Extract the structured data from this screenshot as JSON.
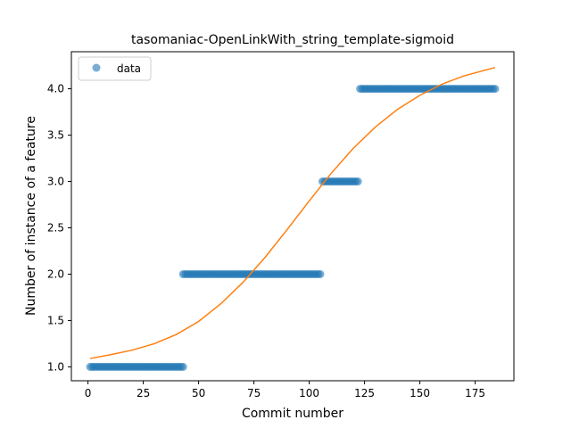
{
  "chart_data": {
    "type": "scatter",
    "title": "tasomaniac-OpenLinkWith_string_template-sigmoid",
    "xlabel": "Commit number",
    "ylabel": "Number of instance of a feature",
    "xlim": [
      -7.5,
      192.5
    ],
    "ylim": [
      0.85,
      4.4
    ],
    "xticks": [
      0,
      25,
      50,
      75,
      100,
      125,
      150,
      175
    ],
    "yticks": [
      1.0,
      1.5,
      2.0,
      2.5,
      3.0,
      3.5,
      4.0
    ],
    "xtick_labels": [
      "0",
      "25",
      "50",
      "75",
      "100",
      "125",
      "150",
      "175"
    ],
    "ytick_labels": [
      "1.0",
      "1.5",
      "2.0",
      "2.5",
      "3.0",
      "3.5",
      "4.0"
    ],
    "grid": false,
    "legend": {
      "position": "top-left",
      "entries": [
        "data"
      ]
    },
    "colors": {
      "data": "#1f77b4",
      "fit": "#ff7f0e"
    },
    "series": [
      {
        "name": "data",
        "kind": "scatter",
        "segments": [
          {
            "x_start": 1,
            "x_end": 43,
            "y": 1.0
          },
          {
            "x_start": 43,
            "x_end": 105,
            "y": 2.0
          },
          {
            "x_start": 106,
            "x_end": 122,
            "y": 3.0
          },
          {
            "x_start": 123,
            "x_end": 184,
            "y": 4.0
          }
        ]
      },
      {
        "kind": "line",
        "x": [
          1,
          10,
          20,
          30,
          40,
          50,
          60,
          70,
          80,
          90,
          100,
          110,
          120,
          130,
          140,
          150,
          160,
          170,
          184
        ],
        "y": [
          1.09,
          1.13,
          1.18,
          1.25,
          1.35,
          1.49,
          1.68,
          1.91,
          2.18,
          2.48,
          2.79,
          3.09,
          3.36,
          3.59,
          3.78,
          3.93,
          4.05,
          4.14,
          4.23
        ]
      }
    ]
  }
}
